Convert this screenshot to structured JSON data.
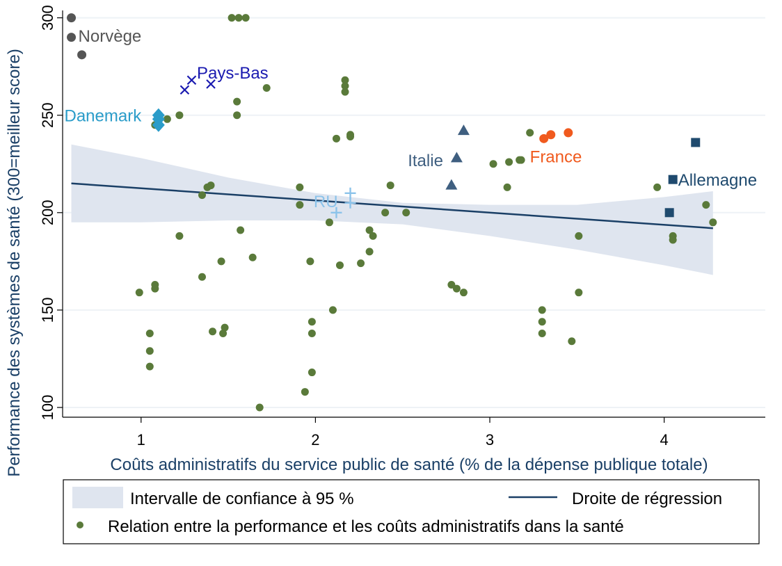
{
  "chart_data": {
    "type": "scatter",
    "title": "",
    "xlabel": "Coûts administratifs du service public de santé (% de la dépense publique totale)",
    "ylabel": "Performance des systèmes de santé (300=meilleur score)",
    "xlim": [
      0.55,
      4.58
    ],
    "ylim": [
      95,
      302
    ],
    "x_ticks": [
      1,
      2,
      3,
      4
    ],
    "y_ticks": [
      100,
      150,
      200,
      250,
      300
    ],
    "grid": "horizontal",
    "legend": {
      "placement": "bottom",
      "ci_label": "Intervalle de confiance à 95 %",
      "line_label": "Droite de régression",
      "points_label": "Relation entre la performance et les coûts administratifs dans la santé"
    },
    "colors": {
      "points": "#5a7a3a",
      "regression": "#1a3f66",
      "ci_band": "#dfe5ef",
      "norvege": "#555555",
      "pays_bas": "#1a1ab0",
      "danemark": "#2a9cc9",
      "italie": "#3f5f80",
      "ru": "#8cc3ea",
      "france": "#f05a1e",
      "allemagne": "#1f4a6e"
    },
    "regression": {
      "x": [
        0.6,
        4.28
      ],
      "y": [
        215,
        192
      ]
    },
    "ci_band": {
      "x": [
        0.6,
        1.0,
        1.5,
        2.0,
        2.5,
        3.0,
        3.5,
        4.0,
        4.28
      ],
      "upper": [
        235,
        228,
        218,
        210,
        205,
        204,
        204,
        208,
        211
      ],
      "lower": [
        195,
        195,
        196,
        196,
        194,
        188,
        181,
        173,
        168
      ]
    },
    "countries": [
      {
        "name": "Norvège",
        "marker": "circle",
        "color": "#555555",
        "points": [
          [
            0.6,
            300
          ],
          [
            0.6,
            290
          ],
          [
            0.66,
            281
          ]
        ],
        "label_at": [
          0.64,
          291
        ]
      },
      {
        "name": "Pays-Bas",
        "marker": "x",
        "color": "#1a1ab0",
        "points": [
          [
            1.25,
            263
          ],
          [
            1.29,
            268
          ],
          [
            1.4,
            266
          ]
        ],
        "label_at": [
          1.32,
          272
        ]
      },
      {
        "name": "Danemark",
        "marker": "diamond",
        "color": "#2a9cc9",
        "points": [
          [
            1.1,
            250
          ],
          [
            1.1,
            245
          ],
          [
            1.1,
            248
          ]
        ],
        "label_at": [
          0.56,
          250
        ]
      },
      {
        "name": "Italie",
        "marker": "triangle",
        "color": "#3f5f80",
        "points": [
          [
            2.85,
            242
          ],
          [
            2.81,
            228
          ],
          [
            2.78,
            214
          ]
        ],
        "label_at": [
          2.53,
          227
        ]
      },
      {
        "name": "RU",
        "marker": "plus",
        "color": "#8cc3ea",
        "points": [
          [
            2.12,
            200
          ],
          [
            2.2,
            205
          ],
          [
            2.2,
            210
          ]
        ],
        "label_at": [
          1.99,
          206
        ]
      },
      {
        "name": "France",
        "marker": "circle",
        "color": "#f05a1e",
        "points": [
          [
            3.31,
            238
          ],
          [
            3.35,
            240
          ],
          [
            3.45,
            241
          ]
        ],
        "label_at": [
          3.23,
          229
        ]
      },
      {
        "name": "Allemagne",
        "marker": "square",
        "color": "#1f4a6e",
        "points": [
          [
            4.18,
            236
          ],
          [
            4.05,
            217
          ],
          [
            4.03,
            200
          ]
        ],
        "label_at": [
          4.08,
          217
        ]
      }
    ],
    "other_points": [
      [
        1.52,
        300
      ],
      [
        1.56,
        300
      ],
      [
        1.6,
        300
      ],
      [
        1.72,
        264
      ],
      [
        2.17,
        268
      ],
      [
        2.17,
        265
      ],
      [
        2.17,
        262
      ],
      [
        1.55,
        257
      ],
      [
        1.55,
        250
      ],
      [
        1.22,
        250
      ],
      [
        1.15,
        248
      ],
      [
        1.08,
        245
      ],
      [
        2.2,
        240
      ],
      [
        2.2,
        239
      ],
      [
        2.12,
        238
      ],
      [
        3.23,
        241
      ],
      [
        3.02,
        225
      ],
      [
        3.11,
        226
      ],
      [
        3.17,
        227
      ],
      [
        3.18,
        227
      ],
      [
        3.1,
        213
      ],
      [
        3.96,
        213
      ],
      [
        1.38,
        213
      ],
      [
        1.4,
        214
      ],
      [
        1.35,
        209
      ],
      [
        1.91,
        213
      ],
      [
        1.91,
        204
      ],
      [
        2.43,
        214
      ],
      [
        2.4,
        200
      ],
      [
        2.52,
        200
      ],
      [
        4.24,
        204
      ],
      [
        4.28,
        195
      ],
      [
        2.08,
        195
      ],
      [
        2.31,
        191
      ],
      [
        2.33,
        188
      ],
      [
        1.57,
        191
      ],
      [
        1.22,
        188
      ],
      [
        4.05,
        188
      ],
      [
        4.05,
        186
      ],
      [
        3.51,
        188
      ],
      [
        1.46,
        175
      ],
      [
        1.64,
        177
      ],
      [
        1.97,
        175
      ],
      [
        2.14,
        173
      ],
      [
        2.26,
        174
      ],
      [
        2.31,
        180
      ],
      [
        1.35,
        167
      ],
      [
        2.78,
        163
      ],
      [
        2.81,
        161
      ],
      [
        2.85,
        159
      ],
      [
        0.99,
        159
      ],
      [
        1.08,
        163
      ],
      [
        1.08,
        161
      ],
      [
        3.51,
        159
      ],
      [
        2.1,
        150
      ],
      [
        3.3,
        150
      ],
      [
        3.3,
        144
      ],
      [
        3.3,
        138
      ],
      [
        3.47,
        134
      ],
      [
        1.41,
        139
      ],
      [
        1.48,
        141
      ],
      [
        1.47,
        138
      ],
      [
        1.98,
        144
      ],
      [
        1.98,
        138
      ],
      [
        1.05,
        138
      ],
      [
        1.05,
        129
      ],
      [
        1.05,
        121
      ],
      [
        1.98,
        118
      ],
      [
        1.94,
        108
      ],
      [
        1.68,
        100
      ]
    ]
  }
}
